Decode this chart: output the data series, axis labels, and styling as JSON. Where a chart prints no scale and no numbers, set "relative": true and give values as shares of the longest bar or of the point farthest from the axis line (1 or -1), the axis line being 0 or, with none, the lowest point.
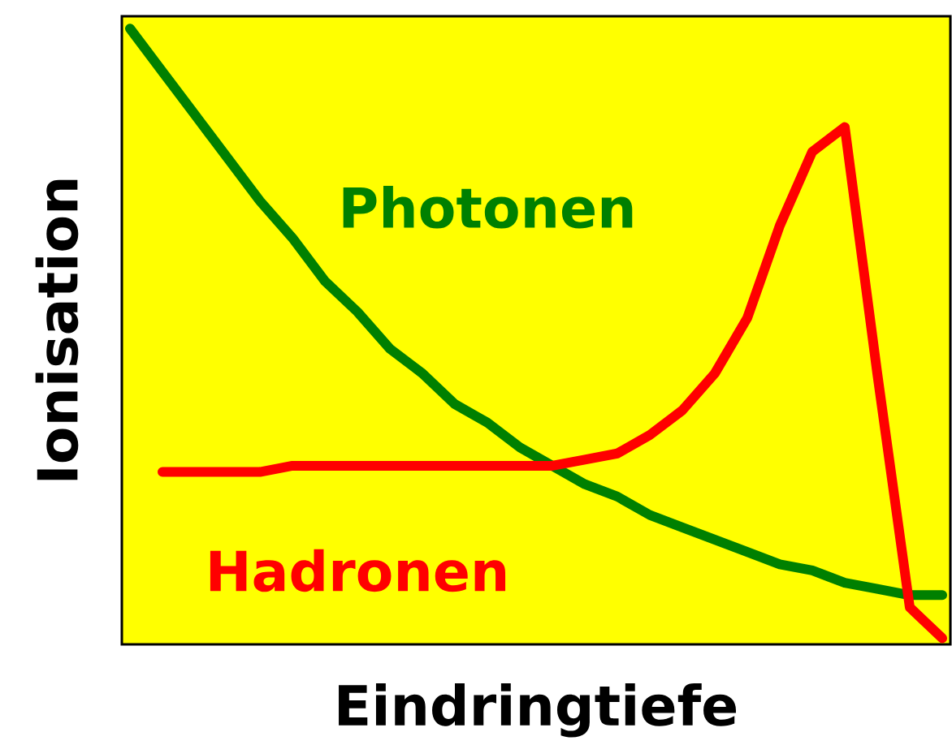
{
  "chart_data": {
    "type": "line",
    "relative": true,
    "xlabel": "Eindringtiefe",
    "ylabel": "Ionisation",
    "categories": [
      null,
      null,
      null,
      null,
      null,
      null,
      null,
      null,
      null,
      null,
      null,
      null,
      null,
      null,
      null,
      null,
      null,
      null,
      null,
      null,
      null,
      null,
      null,
      null,
      null,
      null
    ],
    "series": [
      {
        "name": "Photonen",
        "color": "#008000",
        "values": [
          1.0,
          0.93,
          0.86,
          0.79,
          0.72,
          0.66,
          0.59,
          0.54,
          0.48,
          0.44,
          0.39,
          0.36,
          0.32,
          0.29,
          0.26,
          0.24,
          0.21,
          0.19,
          0.17,
          0.15,
          0.13,
          0.12,
          0.1,
          0.09,
          0.08,
          0.08
        ]
      },
      {
        "name": "Hadronen",
        "color": "#ff0000",
        "values": [
          null,
          0.28,
          0.28,
          0.28,
          0.28,
          0.29,
          0.29,
          0.29,
          0.29,
          0.29,
          0.29,
          0.29,
          0.29,
          0.29,
          0.3,
          0.31,
          0.34,
          0.38,
          0.44,
          0.53,
          0.68,
          0.8,
          0.84,
          0.44,
          0.06,
          0.01
        ]
      }
    ],
    "marker": "none",
    "line_style": "solid"
  }
}
